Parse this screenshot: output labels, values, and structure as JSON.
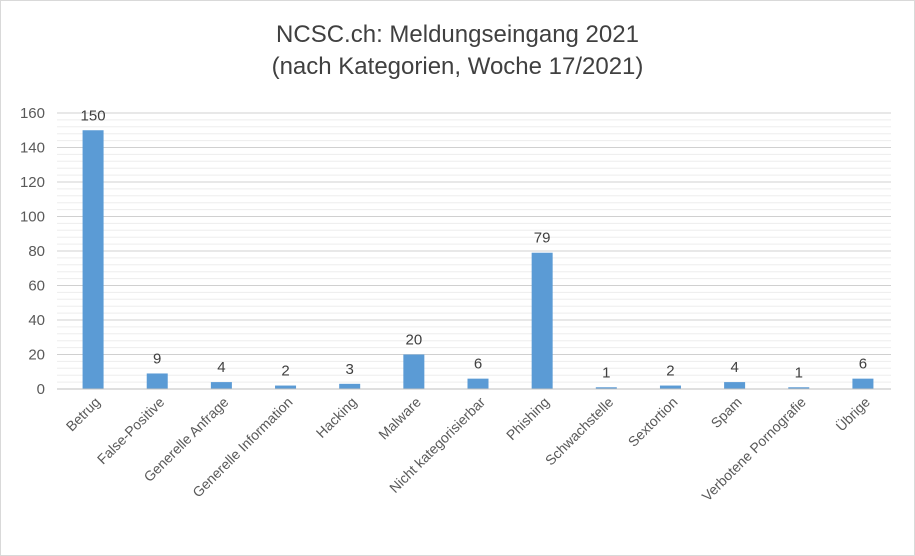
{
  "chart_data": {
    "type": "bar",
    "title": "NCSC.ch: Meldungseingang 2021",
    "subtitle": "(nach Kategorien, Woche 17/2021)",
    "xlabel": "",
    "ylabel": "",
    "categories": [
      "Betrug",
      "False-Positive",
      "Generelle Anfrage",
      "Generelle Information",
      "Hacking",
      "Malware",
      "Nicht kategorisierbar",
      "Phishing",
      "Schwachstelle",
      "Sextortion",
      "Spam",
      "Verbotene Pornografie",
      "Übrige"
    ],
    "values": [
      150,
      9,
      4,
      2,
      3,
      20,
      6,
      79,
      1,
      2,
      4,
      1,
      6
    ],
    "ylim": [
      0,
      160
    ],
    "yticks": [
      0,
      20,
      40,
      60,
      80,
      100,
      120,
      140,
      160
    ],
    "grid": true,
    "legend": "none",
    "bar_color": "#5b9bd5"
  }
}
